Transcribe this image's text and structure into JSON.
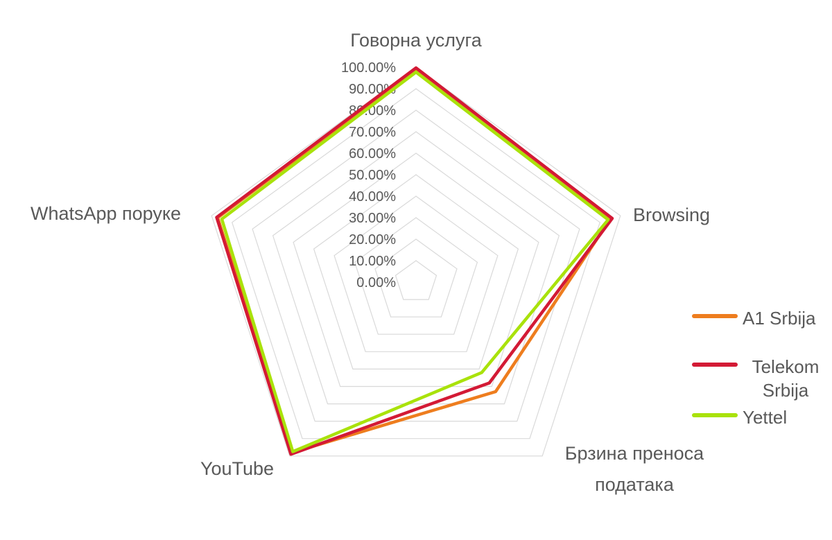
{
  "chart_data": {
    "type": "radar",
    "categories": [
      "Говорна услуга",
      "Browsing",
      "Брзина преноса података",
      "YouTube",
      "WhatsApp поруке"
    ],
    "series": [
      {
        "name": "A1 Srbija",
        "color": "#EE7D1E",
        "values": [
          99.0,
          95.0,
          63.0,
          98.0,
          97.0
        ]
      },
      {
        "name": "Telekom Srbija",
        "color": "#D31A35",
        "values": [
          99.7,
          96.0,
          58.0,
          99.0,
          97.5
        ]
      },
      {
        "name": "Yettel",
        "color": "#A9E20B",
        "values": [
          97.7,
          94.0,
          52.0,
          97.5,
          95.0
        ]
      }
    ],
    "axis": {
      "min": 0,
      "max": 100,
      "step": 10,
      "tick_labels": [
        "0.00%",
        "10.00%",
        "20.00%",
        "30.00%",
        "40.00%",
        "50.00%",
        "60.00%",
        "70.00%",
        "80.00%",
        "90.00%",
        "100.00%"
      ]
    },
    "grid": {
      "rings": 10,
      "color": "#D9D9D9",
      "spokes": false
    },
    "legend": {
      "position": "right",
      "entries": [
        "A1 Srbija",
        "Telekom Srbija",
        "Yettel"
      ]
    },
    "label_color": "#595959",
    "background": "#FFFFFF"
  }
}
